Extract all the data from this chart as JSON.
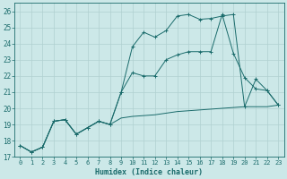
{
  "title": "",
  "xlabel": "Humidex (Indice chaleur)",
  "ylabel": "",
  "bg_color": "#cce8e8",
  "grid_color": "#b0d0d0",
  "line_color": "#1a6b6b",
  "xlim": [
    -0.5,
    23.5
  ],
  "ylim": [
    17,
    26.5
  ],
  "xticks": [
    0,
    1,
    2,
    3,
    4,
    5,
    6,
    7,
    8,
    9,
    10,
    11,
    12,
    13,
    14,
    15,
    16,
    17,
    18,
    19,
    20,
    21,
    22,
    23
  ],
  "yticks": [
    17,
    18,
    19,
    20,
    21,
    22,
    23,
    24,
    25,
    26
  ],
  "line1_x": [
    0,
    1,
    2,
    3,
    4,
    5,
    6,
    7,
    8,
    9,
    10,
    11,
    12,
    13,
    14,
    15,
    16,
    17,
    18,
    19,
    20,
    21,
    22,
    23
  ],
  "line1_y": [
    17.7,
    17.3,
    17.6,
    19.2,
    19.3,
    18.4,
    18.8,
    19.2,
    19.0,
    19.4,
    19.5,
    19.55,
    19.6,
    19.7,
    19.8,
    19.85,
    19.9,
    19.95,
    20.0,
    20.05,
    20.1,
    20.1,
    20.1,
    20.2
  ],
  "line2_x": [
    0,
    1,
    2,
    3,
    4,
    5,
    6,
    7,
    8,
    9,
    10,
    11,
    12,
    13,
    14,
    15,
    16,
    17,
    18,
    19,
    20,
    21,
    22,
    23
  ],
  "line2_y": [
    17.7,
    17.3,
    17.6,
    19.2,
    19.3,
    18.4,
    18.8,
    19.2,
    19.0,
    21.0,
    23.8,
    24.7,
    24.4,
    24.8,
    25.7,
    25.8,
    25.5,
    25.55,
    25.7,
    25.8,
    20.1,
    21.8,
    21.1,
    20.2
  ],
  "line3_x": [
    0,
    1,
    2,
    3,
    4,
    5,
    6,
    7,
    8,
    9,
    10,
    11,
    12,
    13,
    14,
    15,
    16,
    17,
    18,
    19,
    20,
    21,
    22,
    23
  ],
  "line3_y": [
    17.7,
    17.3,
    17.6,
    19.2,
    19.3,
    18.4,
    18.8,
    19.2,
    19.0,
    21.0,
    22.2,
    22.0,
    22.0,
    23.0,
    23.3,
    23.5,
    23.5,
    23.5,
    25.8,
    23.4,
    21.9,
    21.2,
    21.1,
    20.2
  ],
  "xlabel_fontsize": 6,
  "ytick_fontsize": 5.5,
  "xtick_fontsize": 5
}
